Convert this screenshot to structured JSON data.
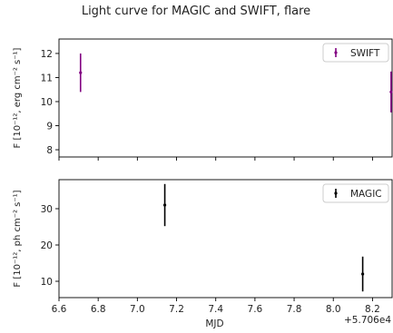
{
  "title": "Light curve for MAGIC and SWIFT, flare",
  "colors": {
    "swift": "#800080",
    "magic": "#000000",
    "axis": "#000000",
    "legend_border": "#cccccc"
  },
  "chart_data": [
    {
      "type": "scatter",
      "panel": "top",
      "ylabel": "F [10⁻¹², erg cm⁻² s⁻¹]",
      "xlabel": "",
      "xlim": [
        6.6,
        8.3
      ],
      "ylim": [
        7.7,
        12.6
      ],
      "xticks": [
        6.6,
        6.8,
        7.0,
        7.2,
        7.4,
        7.6,
        7.8,
        8.0,
        8.2
      ],
      "yticks": [
        8,
        9,
        10,
        11,
        12
      ],
      "ytick_labels": [
        "8",
        "9",
        "10",
        "11",
        "12"
      ],
      "xtick_labels_visible": false,
      "grid": false,
      "legend_position": "top-right",
      "series": [
        {
          "name": "SWIFT",
          "color_key": "swift",
          "points": [
            {
              "x": 6.71,
              "y": 11.2,
              "yerr": 0.8
            },
            {
              "x": 8.295,
              "y": 10.4,
              "yerr": 0.85
            }
          ]
        }
      ]
    },
    {
      "type": "scatter",
      "panel": "bottom",
      "ylabel": "F [10⁻¹², ph cm⁻² s⁻¹]",
      "xlabel": "MJD",
      "x_offset_label": "+5.706e4",
      "xlim": [
        6.6,
        8.3
      ],
      "ylim": [
        5.5,
        38.0
      ],
      "xticks": [
        6.6,
        6.8,
        7.0,
        7.2,
        7.4,
        7.6,
        7.8,
        8.0,
        8.2
      ],
      "xtick_labels": [
        "6.6",
        "6.8",
        "7.0",
        "7.2",
        "7.4",
        "7.6",
        "7.8",
        "8.0",
        "8.2"
      ],
      "yticks": [
        10,
        20,
        30
      ],
      "ytick_labels": [
        "10",
        "20",
        "30"
      ],
      "grid": false,
      "legend_position": "top-right",
      "series": [
        {
          "name": "MAGIC",
          "color_key": "magic",
          "points": [
            {
              "x": 7.14,
              "y": 31.0,
              "yerr": 5.8
            },
            {
              "x": 8.15,
              "y": 12.0,
              "yerr": 4.8
            }
          ]
        }
      ]
    }
  ]
}
